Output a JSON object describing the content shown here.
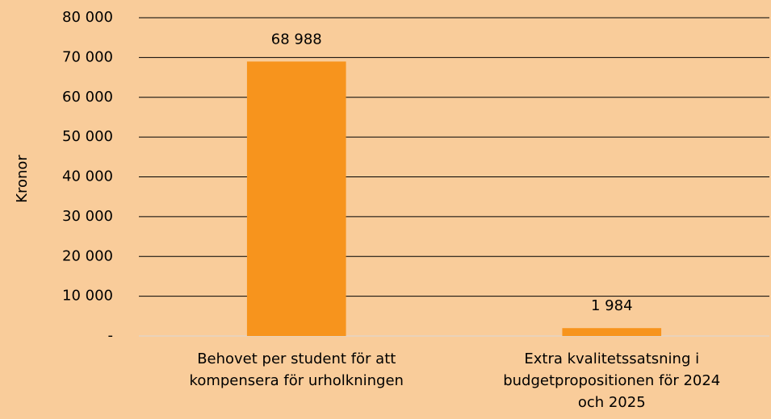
{
  "chart_data": {
    "type": "bar",
    "y_label": "Kronor",
    "categories": [
      [
        "Behovet per student för att",
        "kompensera för urholkningen"
      ],
      [
        "Extra kvalitetssatsning i",
        "budgetpropositionen för 2024",
        "och 2025"
      ]
    ],
    "values": [
      68988,
      1984
    ],
    "value_labels": [
      "68 988",
      "1 984"
    ],
    "color": "#f7941d",
    "background": "#f9cc9a",
    "ylim": [
      0,
      80000
    ],
    "yticks": [
      {
        "value": 0,
        "label": "-"
      },
      {
        "value": 10000,
        "label": "10 000"
      },
      {
        "value": 20000,
        "label": "20 000"
      },
      {
        "value": 30000,
        "label": "30 000"
      },
      {
        "value": 40000,
        "label": "40 000"
      },
      {
        "value": 50000,
        "label": "50 000"
      },
      {
        "value": 60000,
        "label": "60 000"
      },
      {
        "value": 70000,
        "label": "70 000"
      },
      {
        "value": 80000,
        "label": "80 000"
      }
    ],
    "grid": true
  }
}
